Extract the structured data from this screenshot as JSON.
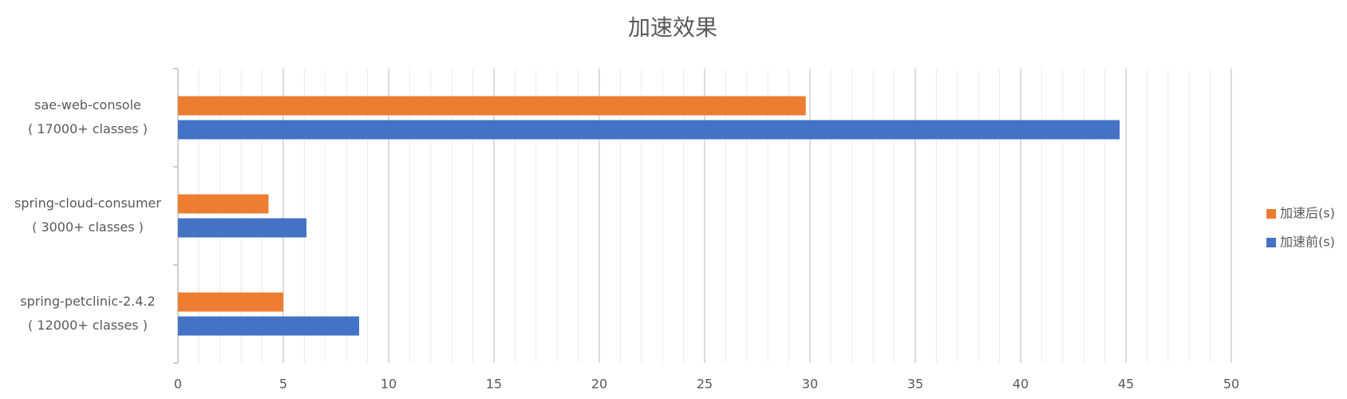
{
  "chart_data": {
    "type": "hbar",
    "title": "加速效果",
    "categories": [
      [
        "sae-web-console",
        "( 17000+ classes )"
      ],
      [
        "spring-cloud-consumer",
        "( 3000+ classes )"
      ],
      [
        "spring-petclinic-2.4.2",
        "( 12000+ classes )"
      ]
    ],
    "series": [
      {
        "name": "加速后(s)",
        "color": "#ED7D31",
        "values": [
          29.8,
          4.3,
          5.0
        ]
      },
      {
        "name": "加速前(s)",
        "color": "#4472C4",
        "values": [
          44.7,
          6.1,
          8.6
        ]
      }
    ],
    "xlim": [
      0,
      50
    ],
    "xticks": [
      0,
      5,
      10,
      15,
      20,
      25,
      30,
      35,
      40,
      45,
      50
    ],
    "grid": true,
    "minor_grid": true,
    "legend": "right"
  }
}
